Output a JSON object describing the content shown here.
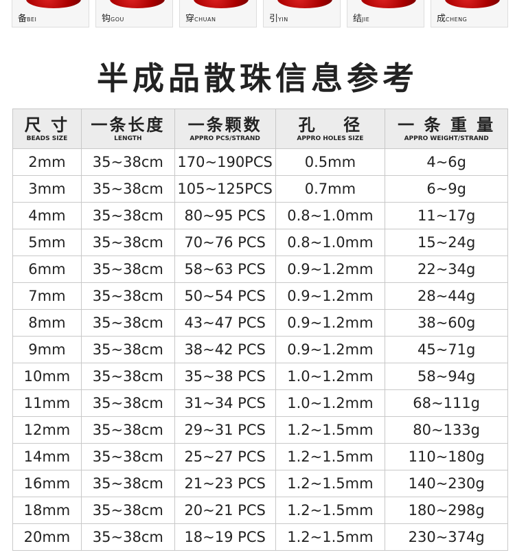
{
  "steps": [
    {
      "cn": "备",
      "en": "BEI"
    },
    {
      "cn": "钩",
      "en": "GOU"
    },
    {
      "cn": "穿",
      "en": "CHUAN"
    },
    {
      "cn": "引",
      "en": "YIN"
    },
    {
      "cn": "结",
      "en": "JIE"
    },
    {
      "cn": "成",
      "en": "CHENG"
    }
  ],
  "title": "半成品散珠信息参考",
  "headers": [
    {
      "cn": "尺 寸",
      "en": "BEADS SIZE"
    },
    {
      "cn": "一条长度",
      "en": "LENGTH"
    },
    {
      "cn": "一条颗数",
      "en": "APPRO PCS/STRAND"
    },
    {
      "cn": "孔　 径",
      "en": "APPRO HOLES SIZE"
    },
    {
      "cn": "一 条 重 量",
      "en": "APPRO WEIGHT/STRAND"
    }
  ],
  "rows": [
    [
      "2mm",
      "35~38cm",
      "170~190PCS",
      "0.5mm",
      "4~6g"
    ],
    [
      "3mm",
      "35~38cm",
      "105~125PCS",
      "0.7mm",
      "6~9g"
    ],
    [
      "4mm",
      "35~38cm",
      "80~95 PCS",
      "0.8~1.0mm",
      "11~17g"
    ],
    [
      "5mm",
      "35~38cm",
      "70~76 PCS",
      "0.8~1.0mm",
      "15~24g"
    ],
    [
      "6mm",
      "35~38cm",
      "58~63 PCS",
      "0.9~1.2mm",
      "22~34g"
    ],
    [
      "7mm",
      "35~38cm",
      "50~54 PCS",
      "0.9~1.2mm",
      "28~44g"
    ],
    [
      "8mm",
      "35~38cm",
      "43~47 PCS",
      "0.9~1.2mm",
      "38~60g"
    ],
    [
      "9mm",
      "35~38cm",
      "38~42 PCS",
      "0.9~1.2mm",
      "45~71g"
    ],
    [
      "10mm",
      "35~38cm",
      "35~38 PCS",
      "1.0~1.2mm",
      "58~94g"
    ],
    [
      "11mm",
      "35~38cm",
      "31~34 PCS",
      "1.0~1.2mm",
      "68~111g"
    ],
    [
      "12mm",
      "35~38cm",
      "29~31 PCS",
      "1.2~1.5mm",
      "80~133g"
    ],
    [
      "14mm",
      "35~38cm",
      "25~27 PCS",
      "1.2~1.5mm",
      "110~180g"
    ],
    [
      "16mm",
      "35~38cm",
      "21~23 PCS",
      "1.2~1.5mm",
      "140~230g"
    ],
    [
      "18mm",
      "35~38cm",
      "20~21 PCS",
      "1.2~1.5mm",
      "180~298g"
    ],
    [
      "20mm",
      "35~38cm",
      "18~19 PCS",
      "1.2~1.5mm",
      "230~374g"
    ]
  ]
}
